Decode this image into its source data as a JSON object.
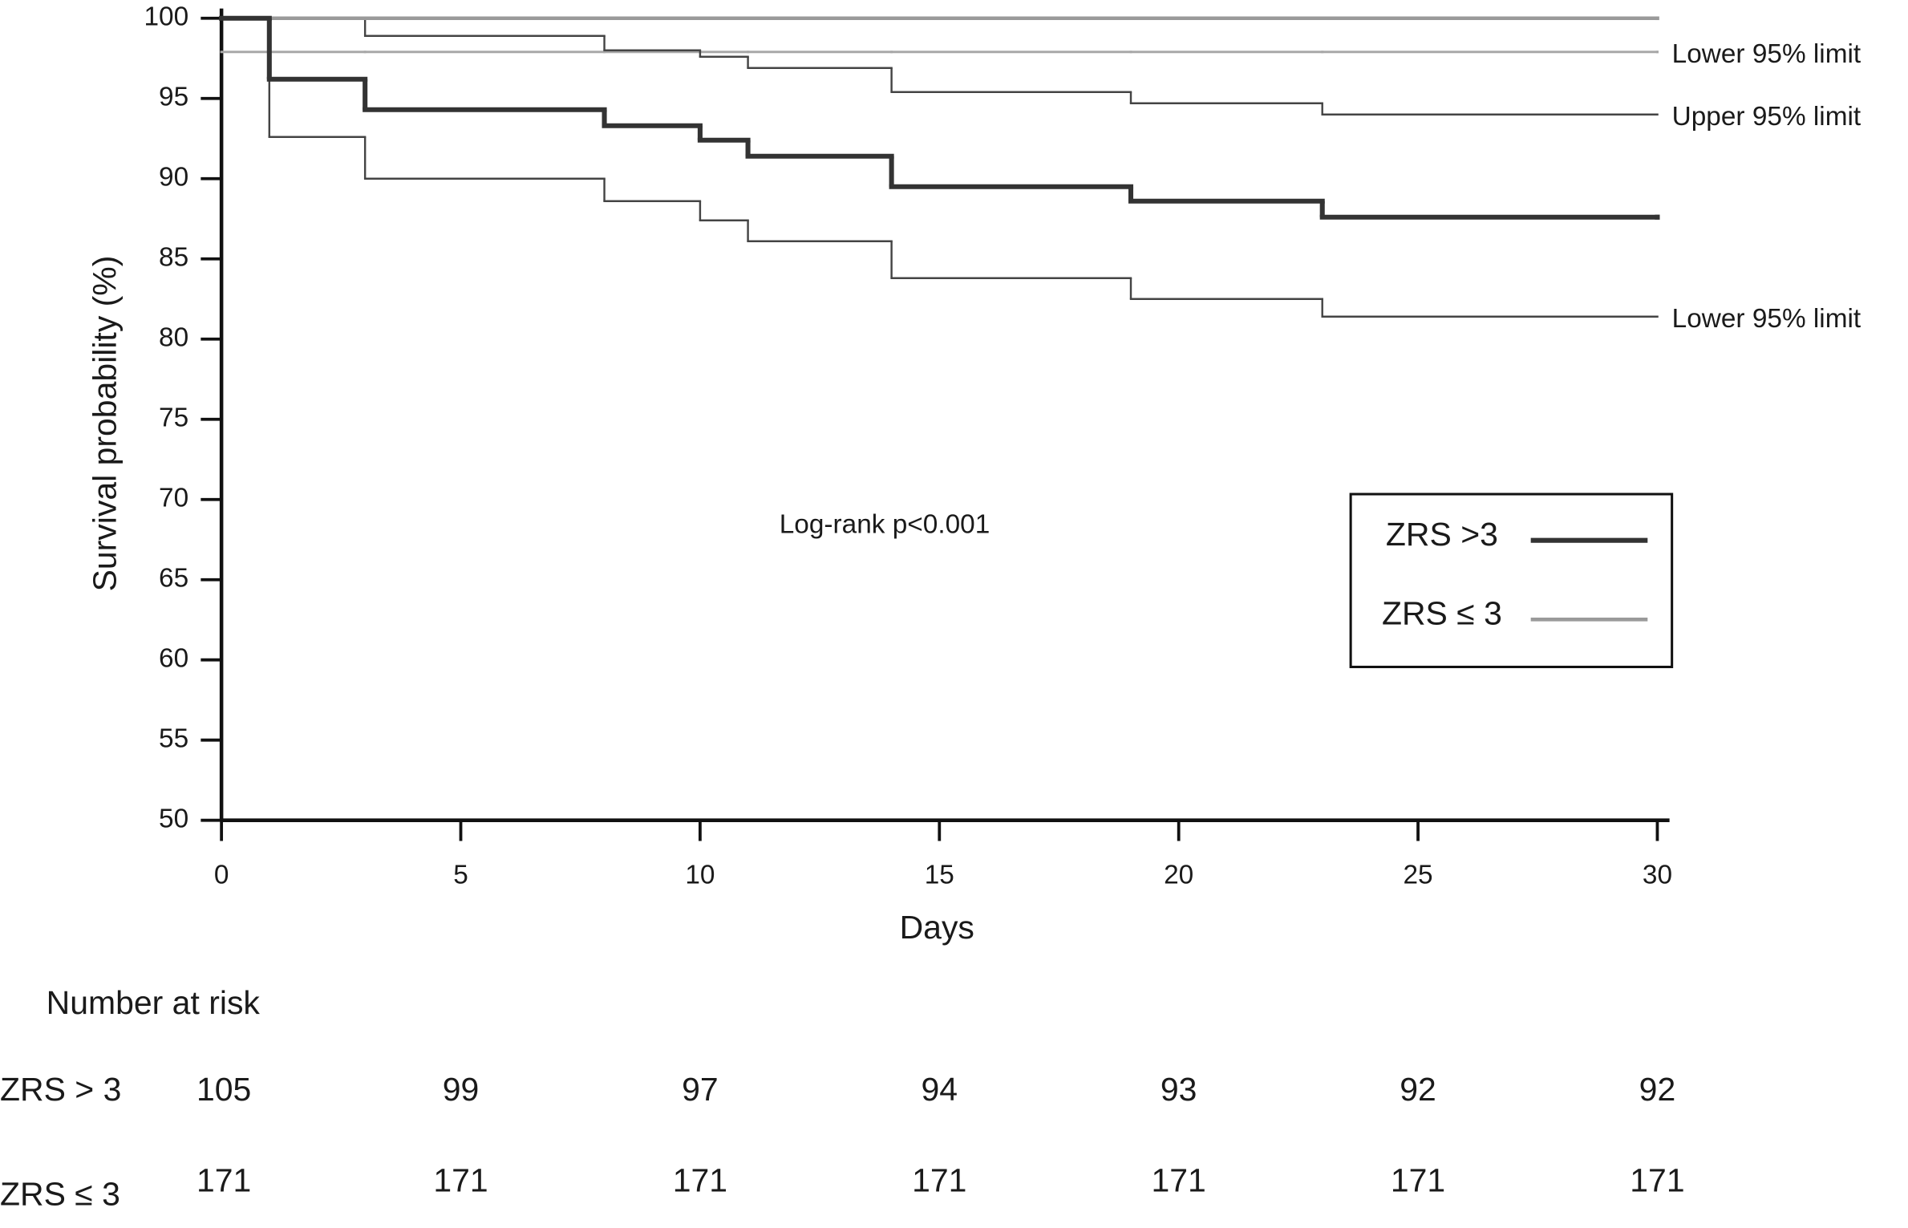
{
  "chart_data": {
    "type": "step",
    "y_label": "Survival probability (%)",
    "x_label": "Days",
    "annotation": "Log-rank p<0.001",
    "xlim": [
      0,
      30
    ],
    "ylim": [
      50,
      100
    ],
    "xticks": [
      0,
      5,
      10,
      15,
      20,
      25,
      30
    ],
    "yticks": [
      50,
      55,
      60,
      65,
      70,
      75,
      80,
      85,
      90,
      95,
      100
    ],
    "x": [
      0,
      1,
      3,
      8,
      10,
      11,
      14,
      19,
      23,
      30
    ],
    "series": [
      {
        "name": "ZRS >3",
        "color": "#333333",
        "values": [
          100,
          96.2,
          94.3,
          93.3,
          92.4,
          91.4,
          89.5,
          88.6,
          87.6,
          87.6
        ]
      },
      {
        "name": "ZRS ≤ 3",
        "color": "#9a9a9a",
        "values": [
          100,
          100,
          100,
          100,
          100,
          100,
          100,
          100,
          100,
          100
        ]
      }
    ],
    "limits": [
      {
        "label": "Lower 95% limit",
        "color": "#a8a8a8",
        "values": [
          97.9,
          97.9,
          97.9,
          97.9,
          97.9,
          97.9,
          97.9,
          97.9,
          97.9,
          97.9
        ]
      },
      {
        "label": "Upper 95% limit",
        "color": "#444444",
        "values": [
          100,
          100,
          98.9,
          98.0,
          97.6,
          96.9,
          95.4,
          94.7,
          94.0,
          94.0
        ]
      },
      {
        "label": "Lower 95% limit",
        "color": "#444444",
        "values": [
          100,
          92.6,
          90.0,
          88.6,
          87.4,
          86.1,
          83.8,
          82.5,
          81.4,
          81.4
        ]
      }
    ],
    "risk_table": {
      "title": "Number at risk",
      "rows": [
        {
          "label": "ZRS > 3",
          "values": [
            105,
            99,
            97,
            94,
            93,
            92,
            92
          ]
        },
        {
          "label": "ZRS ≤ 3",
          "values": [
            171,
            171,
            171,
            171,
            171,
            171,
            171
          ]
        }
      ]
    }
  }
}
